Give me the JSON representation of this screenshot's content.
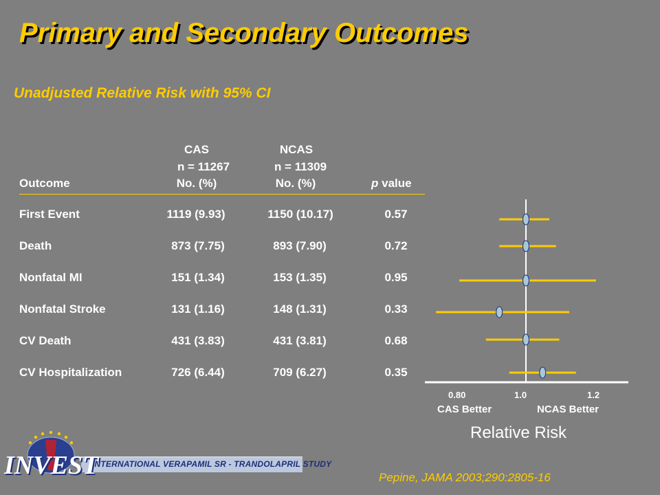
{
  "title": "Primary and Secondary Outcomes",
  "subtitle": "Unadjusted Relative Risk with 95% CI",
  "table": {
    "headers": {
      "outcome": "Outcome",
      "cas_name": "CAS",
      "cas_n": "n = 11267",
      "cas_unit": "No. (%)",
      "ncas_name": "NCAS",
      "ncas_n": "n = 11309",
      "ncas_unit": "No. (%)",
      "p_prefix": "p",
      "p_suffix": "value"
    },
    "rows": [
      {
        "outcome": "First Event",
        "cas": "1119 (9.93)",
        "ncas": "1150 (10.17)",
        "p": "0.57"
      },
      {
        "outcome": "Death",
        "cas": "873 (7.75)",
        "ncas": "893 (7.90)",
        "p": "0.72"
      },
      {
        "outcome": "Nonfatal MI",
        "cas": "151 (1.34)",
        "ncas": "153 (1.35)",
        "p": "0.95"
      },
      {
        "outcome": "Nonfatal Stroke",
        "cas": "131 (1.16)",
        "ncas": "148 (1.31)",
        "p": "0.33"
      },
      {
        "outcome": "CV Death",
        "cas": "431 (3.83)",
        "ncas": "431 (3.81)",
        "p": "0.68"
      },
      {
        "outcome": "CV Hospitalization",
        "cas": "726 (6.44)",
        "ncas": "709 (6.27)",
        "p": "0.35"
      }
    ]
  },
  "chart_data": {
    "type": "forest",
    "xlabel": "Relative Risk",
    "x_ticks": [
      "0.80",
      "1.0",
      "1.2"
    ],
    "left_label": "CAS Better",
    "right_label": "NCAS Better",
    "reference_line": 1.0,
    "series": [
      {
        "label": "First Event",
        "rr": 1.0,
        "lo": 0.92,
        "hi": 1.07
      },
      {
        "label": "Death",
        "rr": 1.0,
        "lo": 0.92,
        "hi": 1.09
      },
      {
        "label": "Nonfatal MI",
        "rr": 1.0,
        "lo": 0.8,
        "hi": 1.21
      },
      {
        "label": "Nonfatal Stroke",
        "rr": 0.92,
        "lo": 0.73,
        "hi": 1.13
      },
      {
        "label": "CV Death",
        "rr": 1.0,
        "lo": 0.88,
        "hi": 1.1
      },
      {
        "label": "CV Hospitalization",
        "rr": 1.05,
        "lo": 0.95,
        "hi": 1.15
      }
    ],
    "colors": {
      "ci_line": "#ffcc00",
      "marker_fill": "#a8c8d8",
      "axis": "#ffffff"
    }
  },
  "logo": {
    "word": "INVEST",
    "banner": "INTERNATIONAL VERAPAMIL SR - TRANDOLAPRIL STUDY"
  },
  "citation": "Pepine, JAMA 2003;290:2805-16"
}
